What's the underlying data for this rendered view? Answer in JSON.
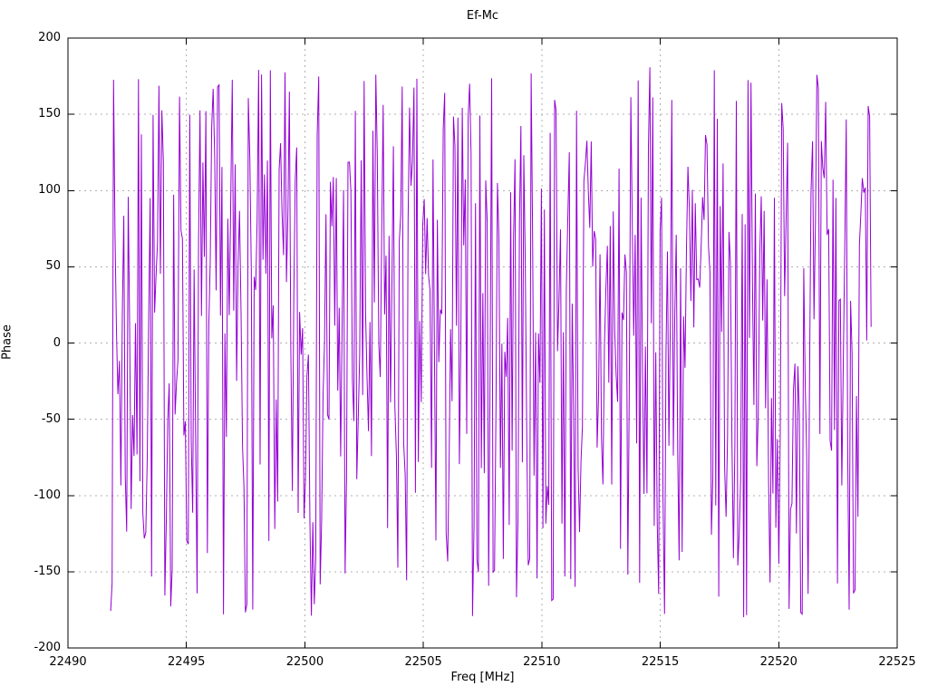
{
  "title": "Ef-Mc",
  "chart_data": {
    "type": "line",
    "title": "Ef-Mc",
    "xlabel": "Freq [MHz]",
    "ylabel": "Phase",
    "xlim": [
      22490,
      22525
    ],
    "ylim": [
      -200,
      200
    ],
    "x_ticks": [
      22490,
      22495,
      22500,
      22505,
      22510,
      22515,
      22520,
      22525
    ],
    "y_ticks": [
      -200,
      -150,
      -100,
      -50,
      0,
      50,
      100,
      150,
      200
    ],
    "grid": true,
    "legend": "none",
    "series": [
      {
        "name": "phase",
        "color": "#9400d3",
        "x_start": 22491.8,
        "x_end": 22523.9,
        "n_points": 520,
        "y_min": -180,
        "y_max": 181,
        "distribution": "uniform-random-wrapped-phase",
        "seed": 7
      }
    ],
    "colors": {
      "background": "#ffffff",
      "grid": "#b0b0b0",
      "axis": "#000000",
      "series": "#9400d3"
    }
  }
}
